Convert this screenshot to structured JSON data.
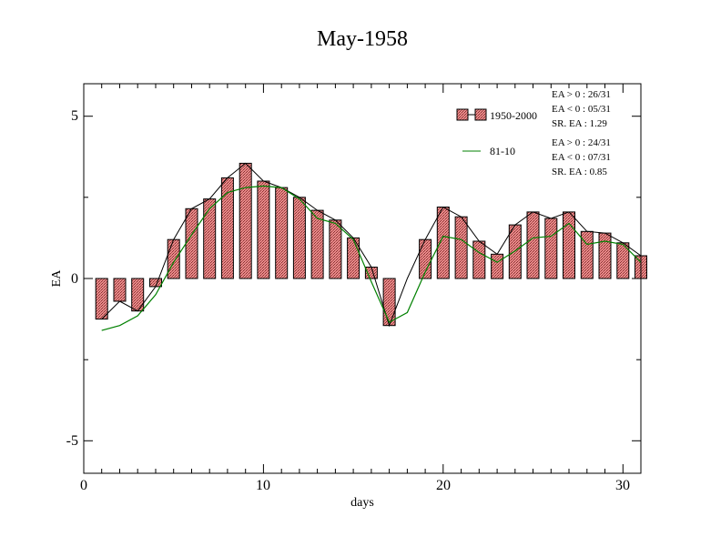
{
  "chart_data": {
    "type": "bar",
    "title": "May-1958",
    "xlabel": "days",
    "ylabel": "EA",
    "xlim": [
      0,
      31
    ],
    "ylim": [
      -6,
      6
    ],
    "x_ticks": [
      "0",
      "10",
      "20",
      "30"
    ],
    "y_ticks": [
      "5",
      "0",
      "-5"
    ],
    "days": [
      1,
      2,
      3,
      4,
      5,
      6,
      7,
      8,
      9,
      10,
      11,
      12,
      13,
      14,
      15,
      16,
      17,
      18,
      19,
      20,
      21,
      22,
      23,
      24,
      25,
      26,
      27,
      28,
      29,
      30,
      31
    ],
    "series": [
      {
        "name": "1950-2000",
        "kind": "bar",
        "values": [
          -1.25,
          -0.7,
          -1.0,
          -0.25,
          1.2,
          2.15,
          2.45,
          3.1,
          3.55,
          3.0,
          2.8,
          2.5,
          2.1,
          1.8,
          1.25,
          0.35,
          -1.45,
          null,
          1.2,
          2.2,
          1.9,
          1.15,
          0.75,
          1.65,
          2.05,
          1.85,
          2.05,
          1.45,
          1.4,
          1.1,
          0.7
        ]
      },
      {
        "name": "81-10",
        "kind": "line",
        "color": "#008000",
        "values": [
          -1.6,
          -1.45,
          -1.15,
          -0.5,
          0.5,
          1.35,
          2.15,
          2.65,
          2.8,
          2.85,
          2.8,
          2.45,
          1.85,
          1.7,
          1.2,
          -0.1,
          -1.35,
          -1.05,
          0.2,
          1.3,
          1.2,
          0.8,
          0.5,
          0.85,
          1.25,
          1.3,
          1.7,
          1.05,
          1.15,
          1.05,
          0.5
        ]
      }
    ],
    "bar_fill": "#e07070",
    "legend_stats": {
      "series1": [
        "EA > 0 : 26/31",
        "EA < 0 : 05/31",
        "SR. EA :  1.29"
      ],
      "series2": [
        "EA > 0 : 24/31",
        "EA < 0 : 07/31",
        "SR. EA :  0.85"
      ]
    },
    "legend_position": "top-right",
    "grid": false
  }
}
